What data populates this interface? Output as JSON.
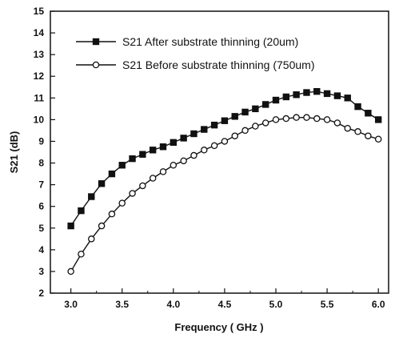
{
  "chart_data": {
    "type": "line",
    "xlabel": "Frequency ( GHz )",
    "ylabel": "S21 (dB)",
    "xlim": [
      2.8,
      6.1
    ],
    "ylim": [
      2,
      15
    ],
    "xticks": [
      "3.0",
      "3.5",
      "4.0",
      "4.5",
      "5.0",
      "5.5",
      "6.0"
    ],
    "yticks": [
      "2",
      "3",
      "4",
      "5",
      "6",
      "7",
      "8",
      "9",
      "10",
      "11",
      "12",
      "13",
      "14",
      "15"
    ],
    "grid": false,
    "legend_position": "upper-left",
    "series": [
      {
        "name": "S21 After substrate thinning (20um)",
        "marker": "filled-square",
        "color": "#111111",
        "x": [
          3.0,
          3.1,
          3.2,
          3.3,
          3.4,
          3.5,
          3.6,
          3.7,
          3.8,
          3.9,
          4.0,
          4.1,
          4.2,
          4.3,
          4.4,
          4.5,
          4.6,
          4.7,
          4.8,
          4.9,
          5.0,
          5.1,
          5.2,
          5.3,
          5.4,
          5.5,
          5.6,
          5.7,
          5.8,
          5.9,
          6.0
        ],
        "y": [
          5.1,
          5.8,
          6.45,
          7.05,
          7.5,
          7.9,
          8.2,
          8.4,
          8.6,
          8.75,
          8.95,
          9.15,
          9.35,
          9.55,
          9.75,
          9.95,
          10.15,
          10.35,
          10.5,
          10.7,
          10.9,
          11.05,
          11.15,
          11.25,
          11.3,
          11.2,
          11.1,
          11.0,
          10.6,
          10.3,
          10.0
        ]
      },
      {
        "name": "S21 Before substrate thinning (750um)",
        "marker": "open-circle",
        "color": "#111111",
        "x": [
          3.0,
          3.1,
          3.2,
          3.3,
          3.4,
          3.5,
          3.6,
          3.7,
          3.8,
          3.9,
          4.0,
          4.1,
          4.2,
          4.3,
          4.4,
          4.5,
          4.6,
          4.7,
          4.8,
          4.9,
          5.0,
          5.1,
          5.2,
          5.3,
          5.4,
          5.5,
          5.6,
          5.7,
          5.8,
          5.9,
          6.0
        ],
        "y": [
          3.0,
          3.8,
          4.5,
          5.1,
          5.65,
          6.15,
          6.6,
          6.95,
          7.3,
          7.6,
          7.9,
          8.1,
          8.35,
          8.6,
          8.8,
          9.0,
          9.25,
          9.5,
          9.7,
          9.85,
          10.0,
          10.05,
          10.1,
          10.1,
          10.05,
          10.0,
          9.85,
          9.6,
          9.45,
          9.25,
          9.1
        ]
      }
    ]
  }
}
